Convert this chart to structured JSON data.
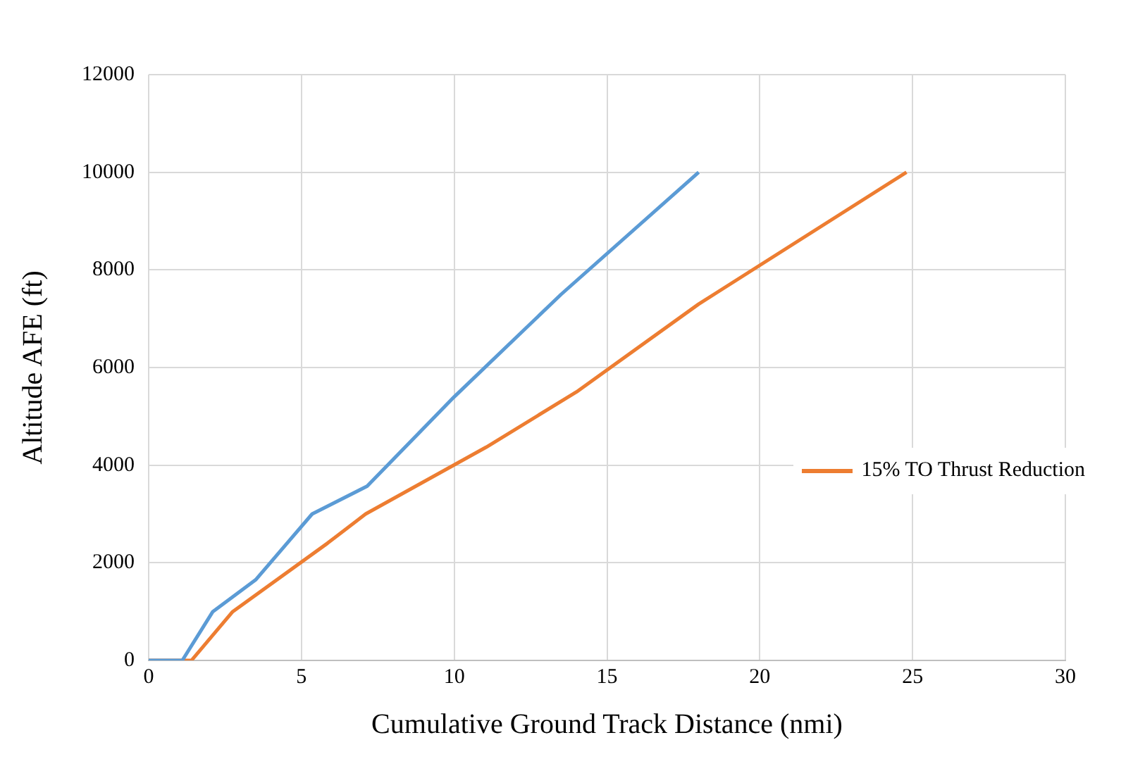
{
  "chart_data": {
    "type": "line",
    "xlabel": "Cumulative Ground Track Distance (nmi)",
    "ylabel": "Altitude AFE (ft)",
    "xlim": [
      0,
      30
    ],
    "xticks": [
      0,
      5,
      10,
      15,
      20,
      25,
      30
    ],
    "ylim": [
      0,
      12000
    ],
    "yticks": [
      0,
      2000,
      4000,
      6000,
      8000,
      10000,
      12000
    ],
    "grid": true,
    "legend": "right",
    "marker": "none",
    "line_style": "solid",
    "series": [
      {
        "color": "#5b9bd5",
        "x": [
          0,
          1.1,
          2.1,
          3.5,
          5.35,
          7.15,
          10,
          13.5,
          18
        ],
        "values": [
          0,
          0,
          1000,
          1650,
          3000,
          3570,
          5400,
          7500,
          10000
        ]
      },
      {
        "name": "15% TO Thrust Reduction",
        "color": "#ed7d31",
        "x": [
          0,
          1.4,
          2.75,
          5.85,
          7.1,
          11.05,
          14,
          18,
          24.8
        ],
        "values": [
          0,
          0,
          1000,
          2400,
          3000,
          4370,
          5500,
          7300,
          10000
        ]
      }
    ]
  }
}
